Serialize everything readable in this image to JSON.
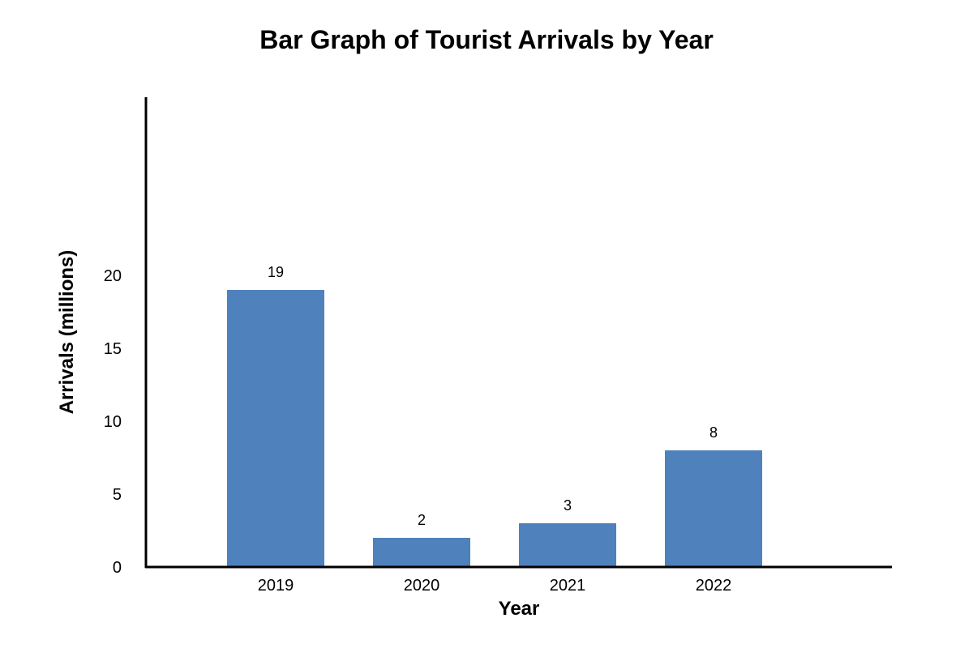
{
  "chart_data": {
    "type": "bar",
    "title": "Bar Graph of Tourist Arrivals by Year",
    "xlabel": "Year",
    "ylabel": "Arrivals (millions)",
    "categories": [
      "2019",
      "2020",
      "2021",
      "2022"
    ],
    "values": [
      19,
      2,
      3,
      8
    ],
    "data_labels": [
      "19",
      "2",
      "3",
      "8"
    ],
    "yticks": [
      "0",
      "5",
      "10",
      "15",
      "20"
    ],
    "ytick_values": [
      0,
      5,
      10,
      15,
      20
    ],
    "bar_color": "#4f81bd",
    "grid": false,
    "legend": "none"
  }
}
